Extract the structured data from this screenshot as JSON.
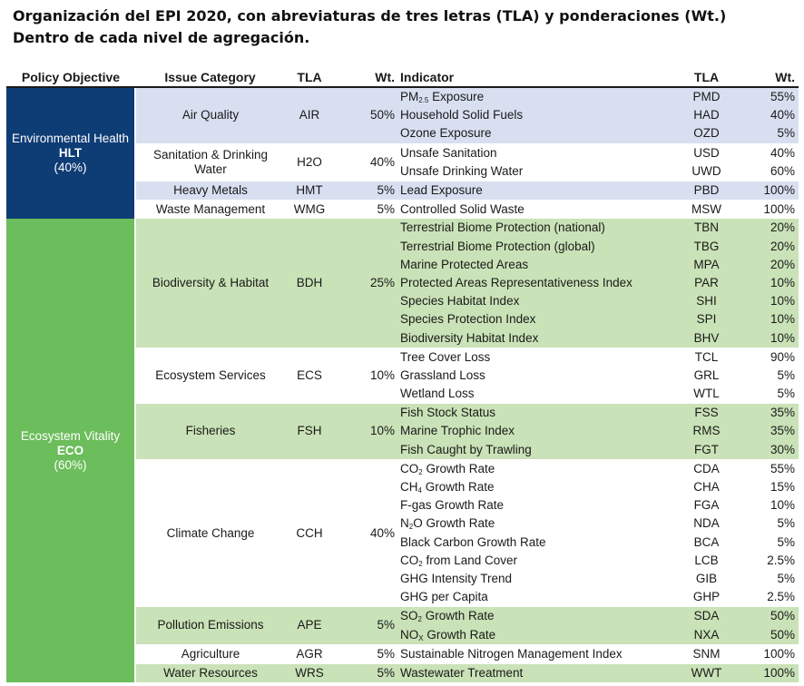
{
  "title": {
    "line1": "Organización del EPI 2020, con abreviaturas de tres letras (TLA) y ponderaciones (Wt.)",
    "line2": "Dentro de cada nivel de agregación."
  },
  "headers": {
    "policy": "Policy Objective",
    "category": "Issue Category",
    "tla": "TLA",
    "wt": "Wt.",
    "indicator": "Indicator",
    "ind_tla": "TLA",
    "ind_wt": "Wt."
  },
  "policies": [
    {
      "name": "Environmental Health",
      "code": "HLT",
      "weight": "(40%)",
      "color": "#0e3c75",
      "categories": [
        {
          "name": "Air Quality",
          "tla": "AIR",
          "wt": "50%",
          "band": "hlt",
          "indicators": [
            {
              "name": "PM2.5 Exposure",
              "tla": "PMD",
              "wt": "55%"
            },
            {
              "name": "Household Solid Fuels",
              "tla": "HAD",
              "wt": "40%"
            },
            {
              "name": "Ozone Exposure",
              "tla": "OZD",
              "wt": "5%"
            }
          ]
        },
        {
          "name": "Sanitation & Drinking Water",
          "tla": "H2O",
          "wt": "40%",
          "band": "none",
          "indicators": [
            {
              "name": "Unsafe Sanitation",
              "tla": "USD",
              "wt": "40%"
            },
            {
              "name": "Unsafe Drinking Water",
              "tla": "UWD",
              "wt": "60%"
            }
          ]
        },
        {
          "name": "Heavy Metals",
          "tla": "HMT",
          "wt": "5%",
          "band": "hlt",
          "indicators": [
            {
              "name": "Lead Exposure",
              "tla": "PBD",
              "wt": "100%"
            }
          ]
        },
        {
          "name": "Waste Management",
          "tla": "WMG",
          "wt": "5%",
          "band": "none",
          "indicators": [
            {
              "name": "Controlled Solid Waste",
              "tla": "MSW",
              "wt": "100%"
            }
          ]
        }
      ]
    },
    {
      "name": "Ecosystem Vitality",
      "code": "ECO",
      "weight": "(60%)",
      "color": "#6cbd5b",
      "categories": [
        {
          "name": "Biodiversity & Habitat",
          "tla": "BDH",
          "wt": "25%",
          "band": "eco",
          "indicators": [
            {
              "name": "Terrestrial Biome Protection (national)",
              "tla": "TBN",
              "wt": "20%"
            },
            {
              "name": "Terrestrial Biome Protection (global)",
              "tla": "TBG",
              "wt": "20%"
            },
            {
              "name": "Marine Protected Areas",
              "tla": "MPA",
              "wt": "20%"
            },
            {
              "name": "Protected Areas Representativeness Index",
              "tla": "PAR",
              "wt": "10%"
            },
            {
              "name": "Species Habitat Index",
              "tla": "SHI",
              "wt": "10%"
            },
            {
              "name": "Species Protection Index",
              "tla": "SPI",
              "wt": "10%"
            },
            {
              "name": "Biodiversity Habitat Index",
              "tla": "BHV",
              "wt": "10%"
            }
          ]
        },
        {
          "name": "Ecosystem Services",
          "tla": "ECS",
          "wt": "10%",
          "band": "none",
          "indicators": [
            {
              "name": "Tree Cover Loss",
              "tla": "TCL",
              "wt": "90%"
            },
            {
              "name": "Grassland Loss",
              "tla": "GRL",
              "wt": "5%"
            },
            {
              "name": "Wetland Loss",
              "tla": "WTL",
              "wt": "5%"
            }
          ]
        },
        {
          "name": "Fisheries",
          "tla": "FSH",
          "wt": "10%",
          "band": "eco",
          "indicators": [
            {
              "name": "Fish Stock Status",
              "tla": "FSS",
              "wt": "35%"
            },
            {
              "name": "Marine Trophic Index",
              "tla": "RMS",
              "wt": "35%"
            },
            {
              "name": "Fish Caught by Trawling",
              "tla": "FGT",
              "wt": "30%"
            }
          ]
        },
        {
          "name": "Climate Change",
          "tla": "CCH",
          "wt": "40%",
          "band": "none",
          "indicators": [
            {
              "name": "CO2 Growth Rate",
              "tla": "CDA",
              "wt": "55%"
            },
            {
              "name": "CH4 Growth Rate",
              "tla": "CHA",
              "wt": "15%"
            },
            {
              "name": "F-gas Growth Rate",
              "tla": "FGA",
              "wt": "10%"
            },
            {
              "name": "N2O Growth Rate",
              "tla": "NDA",
              "wt": "5%"
            },
            {
              "name": "Black Carbon Growth Rate",
              "tla": "BCA",
              "wt": "5%"
            },
            {
              "name": "CO2 from Land Cover",
              "tla": "LCB",
              "wt": "2.5%"
            },
            {
              "name": "GHG Intensity Trend",
              "tla": "GIB",
              "wt": "5%"
            },
            {
              "name": "GHG per Capita",
              "tla": "GHP",
              "wt": "2.5%"
            }
          ]
        },
        {
          "name": "Pollution Emissions",
          "tla": "APE",
          "wt": "5%",
          "band": "eco",
          "indicators": [
            {
              "name": "SO2 Growth Rate",
              "tla": "SDA",
              "wt": "50%"
            },
            {
              "name": "NOX Growth Rate",
              "tla": "NXA",
              "wt": "50%"
            }
          ]
        },
        {
          "name": "Agriculture",
          "tla": "AGR",
          "wt": "5%",
          "band": "none",
          "indicators": [
            {
              "name": "Sustainable Nitrogen Management Index",
              "tla": "SNM",
              "wt": "100%"
            }
          ]
        },
        {
          "name": "Water Resources",
          "tla": "WRS",
          "wt": "5%",
          "band": "eco",
          "indicators": [
            {
              "name": "Wastewater Treatment",
              "tla": "WWT",
              "wt": "100%"
            }
          ]
        }
      ]
    }
  ]
}
